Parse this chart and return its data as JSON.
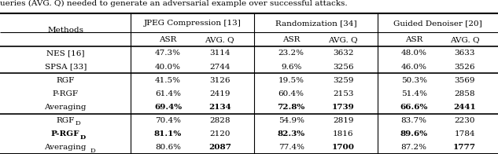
{
  "caption": "ueries (AVG. Q) needed to generate an adversarial example over successful attacks.",
  "rows": [
    {
      "method": "NES [16]",
      "sub": false,
      "bm": false,
      "vals": [
        "47.3%",
        "3114",
        "23.2%",
        "3632",
        "48.0%",
        "3633"
      ],
      "bold": [
        false,
        false,
        false,
        false,
        false,
        false
      ]
    },
    {
      "method": "SPSA [33]",
      "sub": false,
      "bm": false,
      "vals": [
        "40.0%",
        "2744",
        "9.6%",
        "3256",
        "46.0%",
        "3526"
      ],
      "bold": [
        false,
        false,
        false,
        false,
        false,
        false
      ]
    },
    {
      "method": "RGF",
      "sub": false,
      "bm": false,
      "vals": [
        "41.5%",
        "3126",
        "19.5%",
        "3259",
        "50.3%",
        "3569"
      ],
      "bold": [
        false,
        false,
        false,
        false,
        false,
        false
      ]
    },
    {
      "method": "P-RGF",
      "sub": false,
      "bm": false,
      "vals": [
        "61.4%",
        "2419",
        "60.4%",
        "2153",
        "51.4%",
        "2858"
      ],
      "bold": [
        false,
        false,
        false,
        false,
        false,
        false
      ]
    },
    {
      "method": "Averaging",
      "sub": false,
      "bm": false,
      "vals": [
        "69.4%",
        "2134",
        "72.8%",
        "1739",
        "66.6%",
        "2441"
      ],
      "bold": [
        true,
        true,
        true,
        true,
        true,
        true
      ]
    },
    {
      "method": "RGF",
      "sub": true,
      "bm": false,
      "vals": [
        "70.4%",
        "2828",
        "54.9%",
        "2819",
        "83.7%",
        "2230"
      ],
      "bold": [
        false,
        false,
        false,
        false,
        false,
        false
      ]
    },
    {
      "method": "P-RGF",
      "sub": true,
      "bm": true,
      "vals": [
        "81.1%",
        "2120",
        "82.3%",
        "1816",
        "89.6%",
        "1784"
      ],
      "bold": [
        true,
        false,
        true,
        false,
        true,
        false
      ]
    },
    {
      "method": "Averaging",
      "sub": true,
      "bm": false,
      "vals": [
        "80.6%",
        "2087",
        "77.4%",
        "1700",
        "87.2%",
        "1777"
      ],
      "bold": [
        false,
        true,
        false,
        true,
        false,
        true
      ]
    }
  ],
  "group_headers": [
    "JPEG Compression [13]",
    "Randomization [34]",
    "Guided Denoiser [20]"
  ],
  "sep_after": [
    1,
    4
  ],
  "bg_color": "#ffffff",
  "fs": 7.5
}
